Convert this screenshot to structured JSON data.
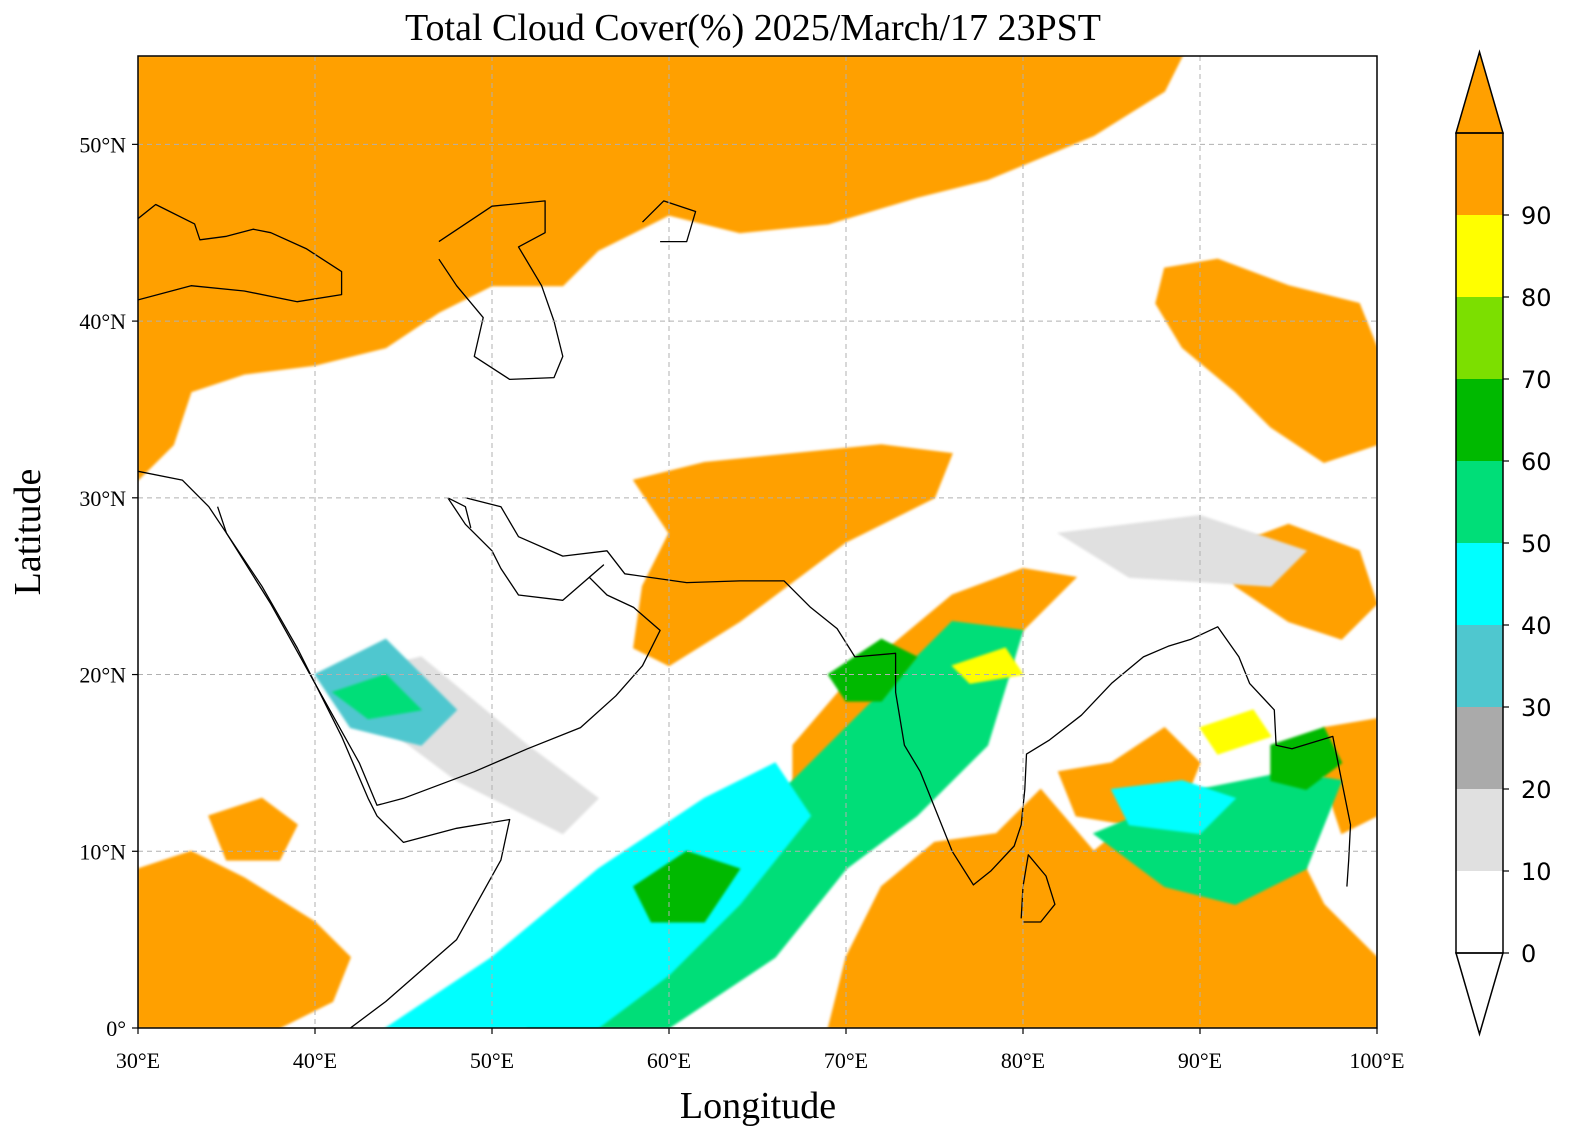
{
  "title": "Total Cloud Cover(%)  2025/March/17 23PST",
  "xlabel": "Longitude",
  "ylabel": "Latitude",
  "map": {
    "lon_range": [
      30,
      100
    ],
    "lat_range": [
      0,
      55
    ],
    "x_ticks": [
      {
        "value": 30,
        "label": "30°E"
      },
      {
        "value": 40,
        "label": "40°E"
      },
      {
        "value": 50,
        "label": "50°E"
      },
      {
        "value": 60,
        "label": "60°E"
      },
      {
        "value": 70,
        "label": "70°E"
      },
      {
        "value": 80,
        "label": "80°E"
      },
      {
        "value": 90,
        "label": "90°E"
      },
      {
        "value": 100,
        "label": "100°E"
      }
    ],
    "y_ticks": [
      {
        "value": 0,
        "label": "0°"
      },
      {
        "value": 10,
        "label": "10°N"
      },
      {
        "value": 20,
        "label": "20°N"
      },
      {
        "value": 30,
        "label": "30°N"
      },
      {
        "value": 40,
        "label": "40°N"
      },
      {
        "value": 50,
        "label": "50°N"
      }
    ],
    "grid": true,
    "grid_style": "dashed",
    "coastlines": true,
    "borders": true
  },
  "colorbar": {
    "placement": "right",
    "extend": "both",
    "levels": [
      {
        "from": 0,
        "to": 10,
        "color": "#ffffff"
      },
      {
        "from": 10,
        "to": 20,
        "color": "#e0e0e0"
      },
      {
        "from": 20,
        "to": 30,
        "color": "#aaaaaa"
      },
      {
        "from": 30,
        "to": 40,
        "color": "#4fc7cf"
      },
      {
        "from": 40,
        "to": 50,
        "color": "#00ffff"
      },
      {
        "from": 50,
        "to": 60,
        "color": "#00de78"
      },
      {
        "from": 60,
        "to": 70,
        "color": "#00b900"
      },
      {
        "from": 70,
        "to": 80,
        "color": "#7cdf00"
      },
      {
        "from": 80,
        "to": 90,
        "color": "#ffff00"
      },
      {
        "from": 90,
        "to": 100,
        "color": "#ffa000"
      }
    ],
    "over_color": "#ffa000",
    "under_color": "#ffffff",
    "tick_labels": [
      "0",
      "10",
      "20",
      "30",
      "40",
      "50",
      "60",
      "70",
      "80",
      "90"
    ]
  },
  "regions": [
    {
      "name": "north-cloud-band",
      "color": "#ffa000",
      "polygon": [
        [
          30,
          55
        ],
        [
          89,
          55
        ],
        [
          88,
          53
        ],
        [
          84,
          50.5
        ],
        [
          78,
          48
        ],
        [
          74,
          47
        ],
        [
          69,
          45.5
        ],
        [
          64,
          45
        ],
        [
          60,
          46
        ],
        [
          56,
          44
        ],
        [
          54,
          42
        ],
        [
          50,
          42
        ],
        [
          47,
          40.5
        ],
        [
          44,
          38.5
        ],
        [
          40,
          37.5
        ],
        [
          36,
          37
        ],
        [
          33,
          36
        ],
        [
          32,
          33
        ],
        [
          30,
          31
        ]
      ]
    },
    {
      "name": "tibet-plateau-cloud",
      "color": "#ffa000",
      "polygon": [
        [
          88,
          43
        ],
        [
          91,
          43.5
        ],
        [
          95,
          42
        ],
        [
          99,
          41
        ],
        [
          100,
          38.5
        ],
        [
          100,
          33
        ],
        [
          97,
          32
        ],
        [
          94,
          34
        ],
        [
          92,
          36
        ],
        [
          89,
          38.5
        ],
        [
          87.5,
          41
        ]
      ]
    },
    {
      "name": "pakistan-arabian-sea-band",
      "color": "#ffa000",
      "polygon": [
        [
          58,
          31
        ],
        [
          62,
          32
        ],
        [
          67,
          32.5
        ],
        [
          72,
          33
        ],
        [
          76,
          32.5
        ],
        [
          75,
          30
        ],
        [
          70,
          27.5
        ],
        [
          68,
          26
        ],
        [
          64,
          23
        ],
        [
          60,
          20.5
        ],
        [
          58,
          21.5
        ],
        [
          58.5,
          25
        ],
        [
          60,
          28
        ]
      ]
    },
    {
      "name": "arabian-sea-cloud",
      "color": "#ffa000",
      "polygon": [
        [
          67,
          16
        ],
        [
          70,
          19.5
        ],
        [
          73,
          22
        ],
        [
          76,
          24.5
        ],
        [
          80,
          26
        ],
        [
          83,
          25.5
        ],
        [
          80,
          22.5
        ],
        [
          76,
          19
        ],
        [
          73,
          15
        ],
        [
          70,
          13.5
        ],
        [
          67,
          13
        ]
      ]
    },
    {
      "name": "indian-ocean-cloud",
      "color": "#ffa000",
      "polygon": [
        [
          69,
          0
        ],
        [
          100,
          0
        ],
        [
          100,
          4
        ],
        [
          97,
          7
        ],
        [
          95,
          11
        ],
        [
          91,
          13
        ],
        [
          87,
          12.5
        ],
        [
          84,
          10
        ],
        [
          81,
          13.5
        ],
        [
          78.5,
          11
        ],
        [
          75,
          10.5
        ],
        [
          72,
          8
        ],
        [
          70,
          4
        ]
      ]
    },
    {
      "name": "bay-of-bengal-cloud",
      "color": "#ffa000",
      "polygon": [
        [
          82,
          14.5
        ],
        [
          85,
          15
        ],
        [
          88,
          17
        ],
        [
          90,
          15
        ],
        [
          89,
          12.5
        ],
        [
          86,
          11.5
        ],
        [
          83,
          12
        ]
      ]
    },
    {
      "name": "horn-africa-cloud",
      "color": "#ffa000",
      "polygon": [
        [
          30,
          0
        ],
        [
          30,
          9
        ],
        [
          33,
          10
        ],
        [
          36,
          8.5
        ],
        [
          40,
          6
        ],
        [
          42,
          4
        ],
        [
          41,
          1.5
        ],
        [
          38,
          0
        ]
      ]
    },
    {
      "name": "ethiopia-cloud",
      "color": "#ffa000",
      "polygon": [
        [
          34,
          12
        ],
        [
          37,
          13
        ],
        [
          39,
          11.5
        ],
        [
          38,
          9.5
        ],
        [
          35,
          9.5
        ]
      ]
    },
    {
      "name": "se-asia-cloud",
      "color": "#ffa000",
      "polygon": [
        [
          91,
          27
        ],
        [
          95,
          28.5
        ],
        [
          99,
          27
        ],
        [
          100,
          24
        ],
        [
          98,
          22
        ],
        [
          95,
          23
        ],
        [
          92,
          25
        ]
      ]
    },
    {
      "name": "myanmar-cloud",
      "color": "#ffa000",
      "polygon": [
        [
          97,
          17
        ],
        [
          100,
          17.5
        ],
        [
          100,
          12
        ],
        [
          98,
          11
        ],
        [
          97,
          14
        ]
      ]
    },
    {
      "name": "arabian-sea-mid",
      "color": "#00de78",
      "polygon": [
        [
          52,
          4
        ],
        [
          60,
          9
        ],
        [
          67,
          14
        ],
        [
          72,
          19
        ],
        [
          76,
          23
        ],
        [
          80,
          22.5
        ],
        [
          78,
          16
        ],
        [
          74,
          12
        ],
        [
          70,
          9
        ],
        [
          66,
          4
        ],
        [
          60,
          0
        ],
        [
          52,
          0
        ]
      ]
    },
    {
      "name": "arabian-sea-south",
      "color": "#00ffff",
      "polygon": [
        [
          44,
          0
        ],
        [
          50,
          4
        ],
        [
          56,
          9
        ],
        [
          62,
          13
        ],
        [
          66,
          15
        ],
        [
          68,
          12
        ],
        [
          64,
          7
        ],
        [
          60,
          3
        ],
        [
          56,
          0
        ]
      ]
    },
    {
      "name": "bay-of-bengal-mid",
      "color": "#00de78",
      "polygon": [
        [
          84,
          11
        ],
        [
          90,
          13.5
        ],
        [
          95,
          14.5
        ],
        [
          98,
          14
        ],
        [
          96,
          9
        ],
        [
          92,
          7
        ],
        [
          88,
          8
        ]
      ]
    },
    {
      "name": "bay-of-bengal-cyan",
      "color": "#00ffff",
      "polygon": [
        [
          85,
          13.5
        ],
        [
          89,
          14
        ],
        [
          92,
          13
        ],
        [
          90,
          11
        ],
        [
          86,
          11.5
        ]
      ]
    },
    {
      "name": "green-patch-a",
      "color": "#00b900",
      "polygon": [
        [
          58,
          8
        ],
        [
          61,
          10
        ],
        [
          64,
          9
        ],
        [
          62,
          6
        ],
        [
          59,
          6
        ]
      ]
    },
    {
      "name": "green-patch-b",
      "color": "#00b900",
      "polygon": [
        [
          69,
          20
        ],
        [
          72,
          22
        ],
        [
          74,
          21
        ],
        [
          72,
          18.5
        ],
        [
          70,
          18.5
        ]
      ]
    },
    {
      "name": "green-patch-c",
      "color": "#00b900",
      "polygon": [
        [
          94,
          16
        ],
        [
          97,
          17
        ],
        [
          98,
          15
        ],
        [
          96,
          13.5
        ],
        [
          94,
          14
        ]
      ]
    },
    {
      "name": "yellow-patch-a",
      "color": "#ffff00",
      "polygon": [
        [
          90,
          17
        ],
        [
          93,
          18
        ],
        [
          94,
          16.5
        ],
        [
          91,
          15.5
        ]
      ]
    },
    {
      "name": "yellow-patch-b",
      "color": "#ffff00",
      "polygon": [
        [
          76,
          20.5
        ],
        [
          79,
          21.5
        ],
        [
          80,
          20
        ],
        [
          77,
          19.5
        ]
      ]
    },
    {
      "name": "gray-haze-a",
      "color": "#e0e0e0",
      "polygon": [
        [
          42,
          20
        ],
        [
          46,
          21
        ],
        [
          52,
          16
        ],
        [
          56,
          13
        ],
        [
          54,
          11
        ],
        [
          48,
          14
        ],
        [
          44,
          17
        ]
      ]
    },
    {
      "name": "gray-haze-b",
      "color": "#e0e0e0",
      "polygon": [
        [
          82,
          28
        ],
        [
          90,
          29
        ],
        [
          96,
          27
        ],
        [
          94,
          25
        ],
        [
          86,
          25.5
        ]
      ]
    },
    {
      "name": "red-sea-cloud",
      "color": "#4fc7cf",
      "polygon": [
        [
          40,
          20
        ],
        [
          44,
          22
        ],
        [
          48,
          18
        ],
        [
          46,
          16
        ],
        [
          42,
          17
        ]
      ]
    },
    {
      "name": "red-sea-green",
      "color": "#00de78",
      "polygon": [
        [
          41,
          19
        ],
        [
          44,
          20
        ],
        [
          46,
          18
        ],
        [
          43,
          17.5
        ]
      ]
    }
  ],
  "outlines": [
    {
      "name": "africa-arabia-coast",
      "points": [
        [
          30,
          31.5
        ],
        [
          32.5,
          31
        ],
        [
          34,
          29.5
        ],
        [
          35,
          28
        ],
        [
          37,
          25
        ],
        [
          39,
          21.5
        ],
        [
          41.5,
          16.5
        ],
        [
          43,
          13
        ],
        [
          43.5,
          12
        ],
        [
          45,
          10.5
        ],
        [
          48,
          11.3
        ],
        [
          51,
          11.8
        ],
        [
          50.5,
          9.5
        ],
        [
          48,
          5
        ],
        [
          44,
          1.5
        ],
        [
          42,
          0
        ]
      ]
    },
    {
      "name": "arabia-coast",
      "points": [
        [
          34.5,
          29.5
        ],
        [
          35,
          28
        ],
        [
          37.5,
          24
        ],
        [
          40,
          19.5
        ],
        [
          42.5,
          15
        ],
        [
          43.5,
          12.6
        ],
        [
          45,
          13
        ],
        [
          49,
          14.5
        ],
        [
          52,
          15.8
        ],
        [
          55,
          17
        ],
        [
          57,
          18.8
        ],
        [
          58.5,
          20.5
        ],
        [
          59.5,
          22.5
        ],
        [
          58,
          23.8
        ],
        [
          56.5,
          24.5
        ],
        [
          55.5,
          25.5
        ],
        [
          56.3,
          26.2
        ],
        [
          54,
          24.2
        ],
        [
          51.5,
          24.5
        ],
        [
          50.5,
          26
        ],
        [
          50,
          27
        ],
        [
          48.5,
          28.5
        ],
        [
          47.5,
          30
        ]
      ]
    },
    {
      "name": "persia-coast",
      "points": [
        [
          48.5,
          30
        ],
        [
          50.5,
          29.5
        ],
        [
          51.5,
          27.8
        ],
        [
          54,
          26.7
        ],
        [
          56.5,
          27
        ],
        [
          57.5,
          25.7
        ],
        [
          61,
          25.2
        ],
        [
          64,
          25.3
        ],
        [
          66.5,
          25.3
        ],
        [
          68,
          23.8
        ],
        [
          69.5,
          22.6
        ],
        [
          70.5,
          21
        ],
        [
          72.8,
          21.2
        ],
        [
          72.8,
          19
        ],
        [
          73.3,
          16
        ],
        [
          74.2,
          14.5
        ],
        [
          75,
          12.5
        ],
        [
          76,
          10
        ],
        [
          77.2,
          8.1
        ],
        [
          78.2,
          8.9
        ],
        [
          79.5,
          10.3
        ],
        [
          79.9,
          11.5
        ],
        [
          80.1,
          13.5
        ],
        [
          80.2,
          15.5
        ],
        [
          81.5,
          16.3
        ],
        [
          83.3,
          17.7
        ],
        [
          85,
          19.5
        ],
        [
          86.8,
          21
        ],
        [
          88.2,
          21.6
        ],
        [
          89.5,
          22
        ],
        [
          91,
          22.7
        ],
        [
          92.2,
          21
        ],
        [
          92.8,
          19.5
        ],
        [
          94.2,
          18
        ],
        [
          94.3,
          16
        ],
        [
          95.2,
          15.8
        ],
        [
          97.5,
          16.5
        ],
        [
          98,
          14
        ],
        [
          98.5,
          11.5
        ],
        [
          98.4,
          9.5
        ],
        [
          98.3,
          8
        ]
      ]
    },
    {
      "name": "sri-lanka",
      "points": [
        [
          79.9,
          6.2
        ],
        [
          80,
          8
        ],
        [
          80.3,
          9.8
        ],
        [
          81.3,
          8.6
        ],
        [
          81.8,
          7
        ],
        [
          81,
          6
        ],
        [
          80,
          6
        ]
      ]
    },
    {
      "name": "caspian-sea",
      "points": [
        [
          47,
          44.5
        ],
        [
          50,
          46.5
        ],
        [
          53,
          46.8
        ],
        [
          53,
          45
        ],
        [
          51.5,
          44.2
        ],
        [
          52.8,
          42
        ],
        [
          53.5,
          40
        ],
        [
          54,
          38
        ],
        [
          53.5,
          36.8
        ],
        [
          51,
          36.7
        ],
        [
          49,
          38
        ],
        [
          49.5,
          40.2
        ],
        [
          48,
          42
        ],
        [
          47,
          43.5
        ]
      ]
    },
    {
      "name": "black-sea",
      "points": [
        [
          28,
          41.3
        ],
        [
          30,
          41.2
        ],
        [
          33,
          42
        ],
        [
          36,
          41.7
        ],
        [
          39,
          41.1
        ],
        [
          41.5,
          41.5
        ],
        [
          41.5,
          42.8
        ],
        [
          39.5,
          44.1
        ],
        [
          37.5,
          45
        ],
        [
          36.5,
          45.2
        ],
        [
          35,
          44.8
        ],
        [
          33.5,
          44.6
        ],
        [
          33.2,
          45.5
        ],
        [
          31,
          46.6
        ],
        [
          30,
          45.8
        ],
        [
          29,
          45
        ]
      ]
    },
    {
      "name": "aral-sea",
      "points": [
        [
          58.5,
          45.6
        ],
        [
          59.7,
          46.8
        ],
        [
          61.5,
          46.2
        ],
        [
          61,
          44.5
        ],
        [
          59.5,
          44.5
        ]
      ]
    },
    {
      "name": "persian-gulf-north",
      "points": [
        [
          47.5,
          30
        ],
        [
          48.5,
          29.5
        ],
        [
          48.8,
          28.3
        ]
      ]
    }
  ]
}
